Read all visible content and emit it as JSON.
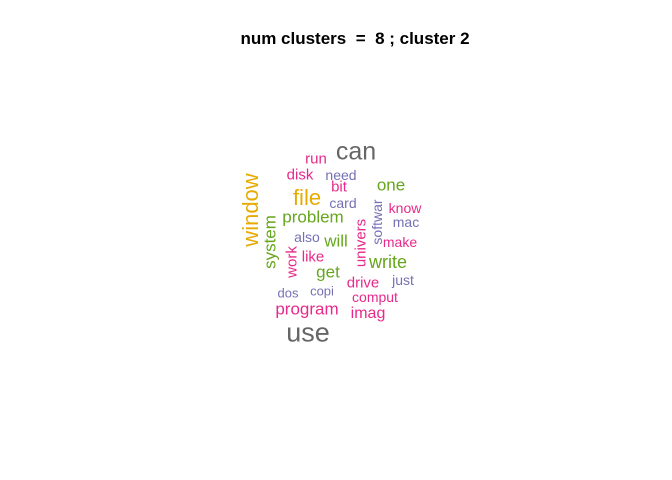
{
  "title": "num clusters  =  8 ; cluster 2",
  "colors": {
    "gray": "#666666",
    "gold": "#E6AB02",
    "green": "#66A61E",
    "pink": "#E7298A",
    "slate": "#7570B3"
  },
  "words": [
    {
      "text": "can",
      "color": "#666666",
      "vertical": false
    },
    {
      "text": "run",
      "color": "#E7298A",
      "vertical": false
    },
    {
      "text": "disk",
      "color": "#E7298A",
      "vertical": false
    },
    {
      "text": "need",
      "color": "#7570B3",
      "vertical": false
    },
    {
      "text": "bit",
      "color": "#E7298A",
      "vertical": false
    },
    {
      "text": "one",
      "color": "#66A61E",
      "vertical": false
    },
    {
      "text": "file",
      "color": "#E6AB02",
      "vertical": false
    },
    {
      "text": "card",
      "color": "#7570B3",
      "vertical": false
    },
    {
      "text": "know",
      "color": "#E7298A",
      "vertical": false
    },
    {
      "text": "window",
      "color": "#E6AB02",
      "vertical": true
    },
    {
      "text": "problem",
      "color": "#66A61E",
      "vertical": false
    },
    {
      "text": "softwar",
      "color": "#7570B3",
      "vertical": true
    },
    {
      "text": "mac",
      "color": "#7570B3",
      "vertical": false
    },
    {
      "text": "system",
      "color": "#66A61E",
      "vertical": true
    },
    {
      "text": "also",
      "color": "#7570B3",
      "vertical": false
    },
    {
      "text": "will",
      "color": "#66A61E",
      "vertical": false
    },
    {
      "text": "univers",
      "color": "#E7298A",
      "vertical": true
    },
    {
      "text": "make",
      "color": "#E7298A",
      "vertical": false
    },
    {
      "text": "work",
      "color": "#E7298A",
      "vertical": true
    },
    {
      "text": "like",
      "color": "#E7298A",
      "vertical": false
    },
    {
      "text": "write",
      "color": "#66A61E",
      "vertical": false
    },
    {
      "text": "get",
      "color": "#66A61E",
      "vertical": false
    },
    {
      "text": "just",
      "color": "#7570B3",
      "vertical": false
    },
    {
      "text": "drive",
      "color": "#E7298A",
      "vertical": false
    },
    {
      "text": "dos",
      "color": "#7570B3",
      "vertical": false
    },
    {
      "text": "copi",
      "color": "#7570B3",
      "vertical": false
    },
    {
      "text": "comput",
      "color": "#E7298A",
      "vertical": false
    },
    {
      "text": "program",
      "color": "#E7298A",
      "vertical": false
    },
    {
      "text": "imag",
      "color": "#E7298A",
      "vertical": false
    },
    {
      "text": "use",
      "color": "#666666",
      "vertical": false
    }
  ]
}
